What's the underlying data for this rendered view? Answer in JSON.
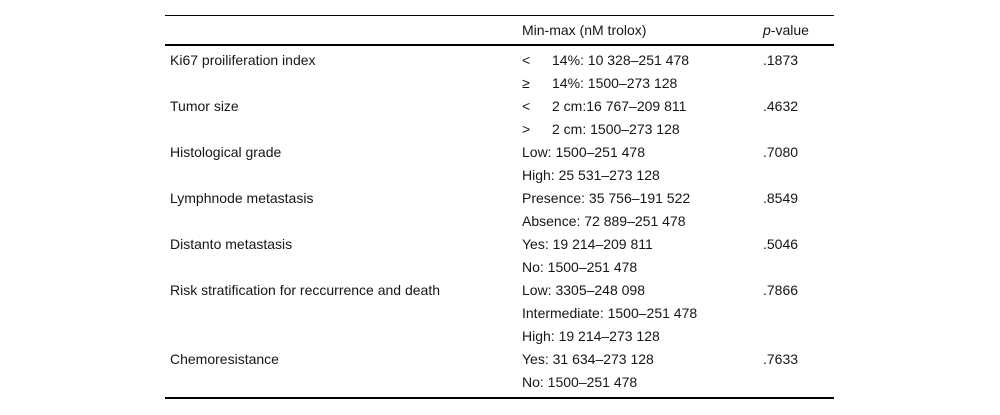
{
  "page": {
    "background": "#ffffff",
    "text_color": "#161616",
    "rule_color": "#000000"
  },
  "table": {
    "header": {
      "variable": "",
      "minmax": "Min-max (nM trolox)",
      "pvalue_italic": "p",
      "pvalue_rest": "-value"
    },
    "rows": [
      {
        "label": "Ki67 proiliferation index",
        "p_value": ".1873",
        "lines": [
          {
            "symbol": "<",
            "text": "14%: 10 328–251 478"
          },
          {
            "symbol": "≥",
            "text": "14%: 1500–273 128"
          }
        ]
      },
      {
        "label": "Tumor size",
        "p_value": ".4632",
        "lines": [
          {
            "symbol": "<",
            "text": "2 cm:16 767–209 811"
          },
          {
            "symbol": ">",
            "text": "2 cm: 1500–273 128"
          }
        ]
      },
      {
        "label": "Histological grade",
        "p_value": ".7080",
        "lines": [
          {
            "symbol": "",
            "text": "Low: 1500–251 478"
          },
          {
            "symbol": "",
            "text": "High: 25 531–273 128"
          }
        ]
      },
      {
        "label": "Lymphnode metastasis",
        "p_value": ".8549",
        "lines": [
          {
            "symbol": "",
            "text": "Presence: 35 756–191 522"
          },
          {
            "symbol": "",
            "text": "Absence: 72 889–251 478"
          }
        ]
      },
      {
        "label": "Distanto metastasis",
        "p_value": ".5046",
        "lines": [
          {
            "symbol": "",
            "text": "Yes: 19 214–209 811"
          },
          {
            "symbol": "",
            "text": "No: 1500–251 478"
          }
        ]
      },
      {
        "label": "Risk stratification for reccurrence and death",
        "p_value": ".7866",
        "lines": [
          {
            "symbol": "",
            "text": "Low: 3305–248 098"
          },
          {
            "symbol": "",
            "text": "Intermediate: 1500–251 478"
          },
          {
            "symbol": "",
            "text": "High: 19 214–273 128"
          }
        ]
      },
      {
        "label": "Chemoresistance",
        "p_value": ".7633",
        "lines": [
          {
            "symbol": "",
            "text": "Yes: 31 634–273 128"
          },
          {
            "symbol": "",
            "text": "No: 1500–251 478"
          }
        ]
      }
    ]
  }
}
